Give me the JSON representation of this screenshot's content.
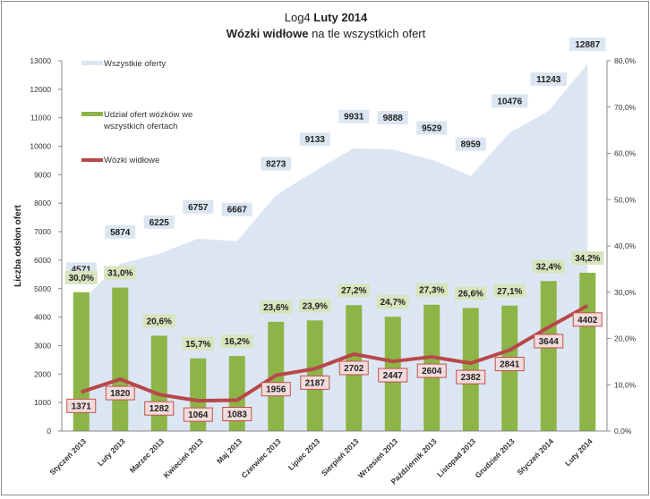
{
  "chart_data": {
    "type": "bar",
    "title_prefix": "Log4",
    "title_bold": "Luty 2014",
    "subtitle_bold": "Wózki widłowe",
    "subtitle_rest": " na tle wszystkich ofert",
    "ylabel": "Liczba odsłon ofert",
    "ylim": [
      0,
      13000
    ],
    "y2lim": [
      0,
      0.8
    ],
    "yticks": [
      "0",
      "1000",
      "2000",
      "3000",
      "4000",
      "5000",
      "6000",
      "7000",
      "8000",
      "9000",
      "10000",
      "11000",
      "12000",
      "13000"
    ],
    "y2ticks": [
      "0,0%",
      "10,0%",
      "20,0%",
      "30,0%",
      "40,0%",
      "50,0%",
      "60,0%",
      "70,0%",
      "80,0%"
    ],
    "categories": [
      "Styczeń 2013",
      "Luty 2013",
      "Marzec 2013",
      "Kwiecień 2013",
      "Maj 2013",
      "Czerwiec 2013",
      "Lipiec 2013",
      "Sierpień 2013",
      "Wrzesień 2013",
      "Październik 2013",
      "Listopad 2013",
      "Grudzień 2013",
      "Styczeń 2014",
      "Luty 2014"
    ],
    "series": [
      {
        "name": "Wszystkie oferty",
        "type": "area",
        "axis": "left",
        "color": "#dce6f2",
        "values": [
          4571,
          5874,
          6225,
          6757,
          6667,
          8273,
          9133,
          9931,
          9888,
          9529,
          8959,
          10476,
          11243,
          12887
        ],
        "labels": [
          "4571",
          "5874",
          "6225",
          "6757",
          "6667",
          "8273",
          "9133",
          "9931",
          "9888",
          "9529",
          "8959",
          "10476",
          "11243",
          "12887"
        ]
      },
      {
        "name": "Udział ofert wózków we wszystkich ofertach",
        "type": "bar",
        "axis": "right",
        "color": "#8db446",
        "values": [
          0.3,
          0.31,
          0.206,
          0.157,
          0.162,
          0.236,
          0.239,
          0.272,
          0.247,
          0.273,
          0.266,
          0.271,
          0.324,
          0.342
        ],
        "labels": [
          "30,0%",
          "31,0%",
          "20,6%",
          "15,7%",
          "16,2%",
          "23,6%",
          "23,9%",
          "27,2%",
          "24,7%",
          "27,3%",
          "26,6%",
          "27,1%",
          "32,4%",
          "34,2%"
        ]
      },
      {
        "name": "Wózki widłowe",
        "type": "line",
        "axis": "left",
        "color": "#b8474a",
        "values": [
          1371,
          1820,
          1282,
          1064,
          1083,
          1956,
          2187,
          2702,
          2447,
          2604,
          2382,
          2841,
          3644,
          4402
        ],
        "labels": [
          "1371",
          "1820",
          "1282",
          "1064",
          "1083",
          "1956",
          "2187",
          "2702",
          "2447",
          "2604",
          "2382",
          "2841",
          "3644",
          "4402"
        ]
      }
    ],
    "legend": [
      "Wszystkie oferty",
      "Udział ofert wózków we",
      "wszystkich ofertach",
      "Wózki widłowe"
    ],
    "legend_placement": "top-left",
    "grid": false
  }
}
